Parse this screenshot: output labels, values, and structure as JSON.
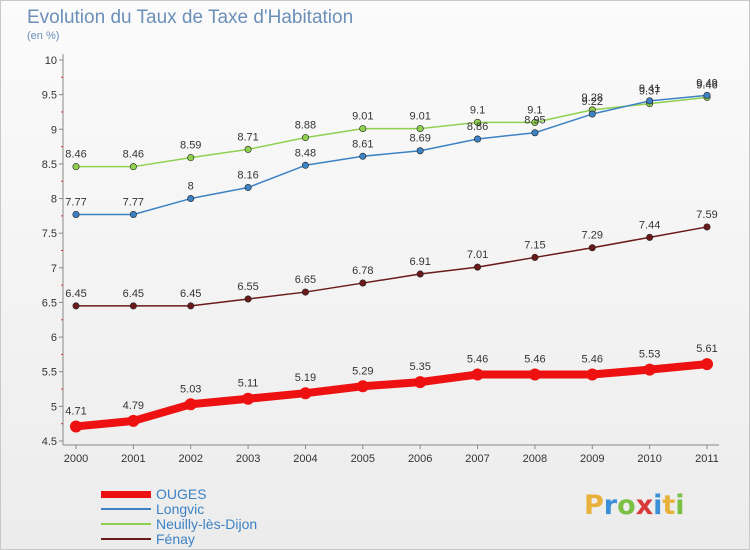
{
  "header": {
    "title": "Evolution du Taux de Taxe d'Habitation",
    "subtitle": "(en %)"
  },
  "logo": {
    "letters": [
      "P",
      "r",
      "o",
      "x",
      "i",
      "t",
      "i"
    ],
    "colors": [
      "#e8b23a",
      "#3a8fd8",
      "#7cc043",
      "#d83a3a",
      "#3a8fd8",
      "#e8b23a",
      "#7cc043"
    ]
  },
  "chart_data": {
    "type": "line",
    "title": "Evolution du Taux de Taxe d'Habitation",
    "subtitle": "(en %)",
    "categories": [
      "2000",
      "2001",
      "2002",
      "2003",
      "2004",
      "2005",
      "2006",
      "2007",
      "2008",
      "2009",
      "2010",
      "2011"
    ],
    "ylim": [
      4.5,
      10
    ],
    "yticks": [
      "4.5",
      "5",
      "5.5",
      "6",
      "6.5",
      "7",
      "7.5",
      "8",
      "8.5",
      "9",
      "9.5",
      "10"
    ],
    "grid": false,
    "legend_position": "bottom-left",
    "series": [
      {
        "name": "OUGES",
        "color": "#ee1111",
        "values": [
          4.71,
          4.79,
          5.03,
          5.11,
          5.19,
          5.29,
          5.35,
          5.46,
          5.46,
          5.46,
          5.53,
          5.61
        ],
        "labels": [
          "4.71",
          "4.79",
          "5.03",
          "5.11",
          "5.19",
          "5.29",
          "5.35",
          "5.46",
          "5.46",
          "5.46",
          "5.53",
          "5.61"
        ]
      },
      {
        "name": "Longvic",
        "color": "#3d82c4",
        "values": [
          7.77,
          7.77,
          8,
          8.16,
          8.48,
          8.61,
          8.69,
          8.86,
          8.95,
          9.22,
          9.41,
          9.49
        ],
        "labels": [
          "7.77",
          "7.77",
          "8",
          "8.16",
          "8.48",
          "8.61",
          "8.69",
          "8.86",
          "8.95",
          "9.22",
          "9.41",
          "9.49"
        ]
      },
      {
        "name": "Neuilly-lès-Dijon",
        "color": "#8fd14f",
        "values": [
          8.46,
          8.46,
          8.59,
          8.71,
          8.88,
          9.01,
          9.01,
          9.1,
          9.1,
          9.28,
          9.37,
          9.46
        ],
        "labels": [
          "8.46",
          "8.46",
          "8.59",
          "8.71",
          "8.88",
          "9.01",
          "9.01",
          "9.1",
          "9.1",
          "9.28",
          "9.37",
          "9.46"
        ]
      },
      {
        "name": "Fénay",
        "color": "#6b1a1a",
        "values": [
          6.45,
          6.45,
          6.45,
          6.55,
          6.65,
          6.78,
          6.91,
          7.01,
          7.15,
          7.29,
          7.44,
          7.59
        ],
        "labels": [
          "6.45",
          "6.45",
          "6.45",
          "6.55",
          "6.65",
          "6.78",
          "6.91",
          "7.01",
          "7.15",
          "7.29",
          "7.44",
          "7.59"
        ]
      }
    ]
  }
}
